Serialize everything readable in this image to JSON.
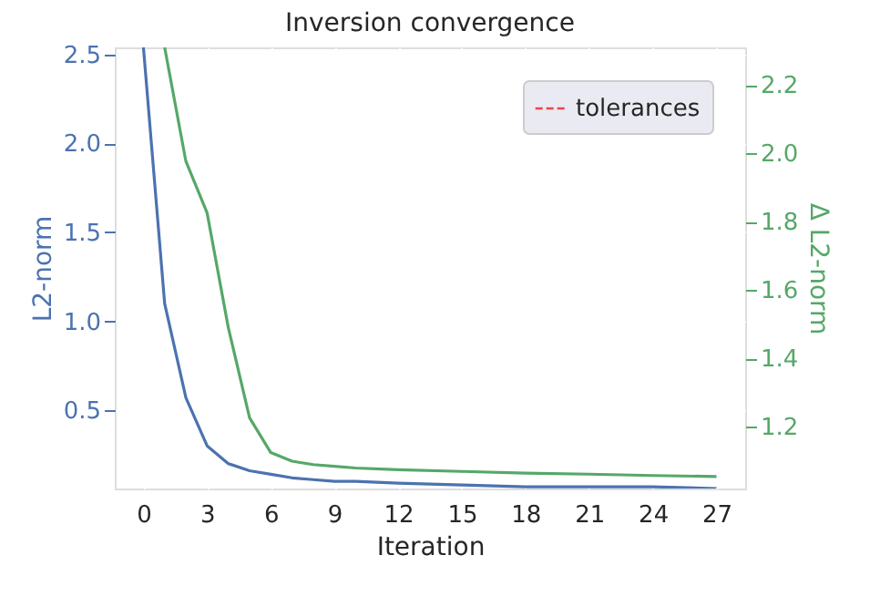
{
  "chart_data": {
    "type": "line",
    "title": "Inversion convergence",
    "xlabel": "Iteration",
    "ylabel": "L2-norm",
    "y2label": "Δ L2-norm",
    "xlim": [
      -1.35,
      28.35
    ],
    "xticks": [
      0,
      3,
      6,
      9,
      12,
      15,
      18,
      21,
      24,
      27
    ],
    "ylim": [
      0.06,
      2.54
    ],
    "yticks": [
      0.5,
      {
        "value": 1,
        "label": "1.0"
      },
      1.5,
      {
        "value": 2,
        "label": "2.0"
      },
      2.5
    ],
    "y2lim": [
      1.02,
      2.31
    ],
    "y2ticks": [
      1.2,
      1.4,
      1.6,
      1.8,
      {
        "value": 2,
        "label": "2.0"
      },
      2.2
    ],
    "grid": true,
    "legend": "top right",
    "line_style": "solid",
    "series": [
      {
        "color": "#4c72b0",
        "x": [
          0,
          1,
          2,
          3,
          4,
          5,
          6,
          7,
          8,
          9,
          10,
          12,
          15,
          18,
          21,
          24,
          27
        ],
        "values": [
          2.54,
          1.1,
          0.57,
          0.3,
          0.2,
          0.16,
          0.14,
          0.12,
          0.11,
          0.1,
          0.1,
          0.09,
          0.08,
          0.07,
          0.07,
          0.07,
          0.06
        ]
      },
      {
        "color": "#55a868",
        "axis": "y2",
        "x": [
          1,
          2,
          3,
          4,
          5,
          6,
          7,
          8,
          9,
          10,
          12,
          15,
          18,
          21,
          24,
          27
        ],
        "values": [
          2.31,
          1.977,
          1.826,
          1.49,
          1.227,
          1.125,
          1.1,
          1.09,
          1.085,
          1.08,
          1.075,
          1.07,
          1.065,
          1.062,
          1.058,
          1.055
        ]
      },
      {
        "name": "tolerances",
        "color": "#e5484d",
        "line_style": "dashed"
      }
    ]
  }
}
